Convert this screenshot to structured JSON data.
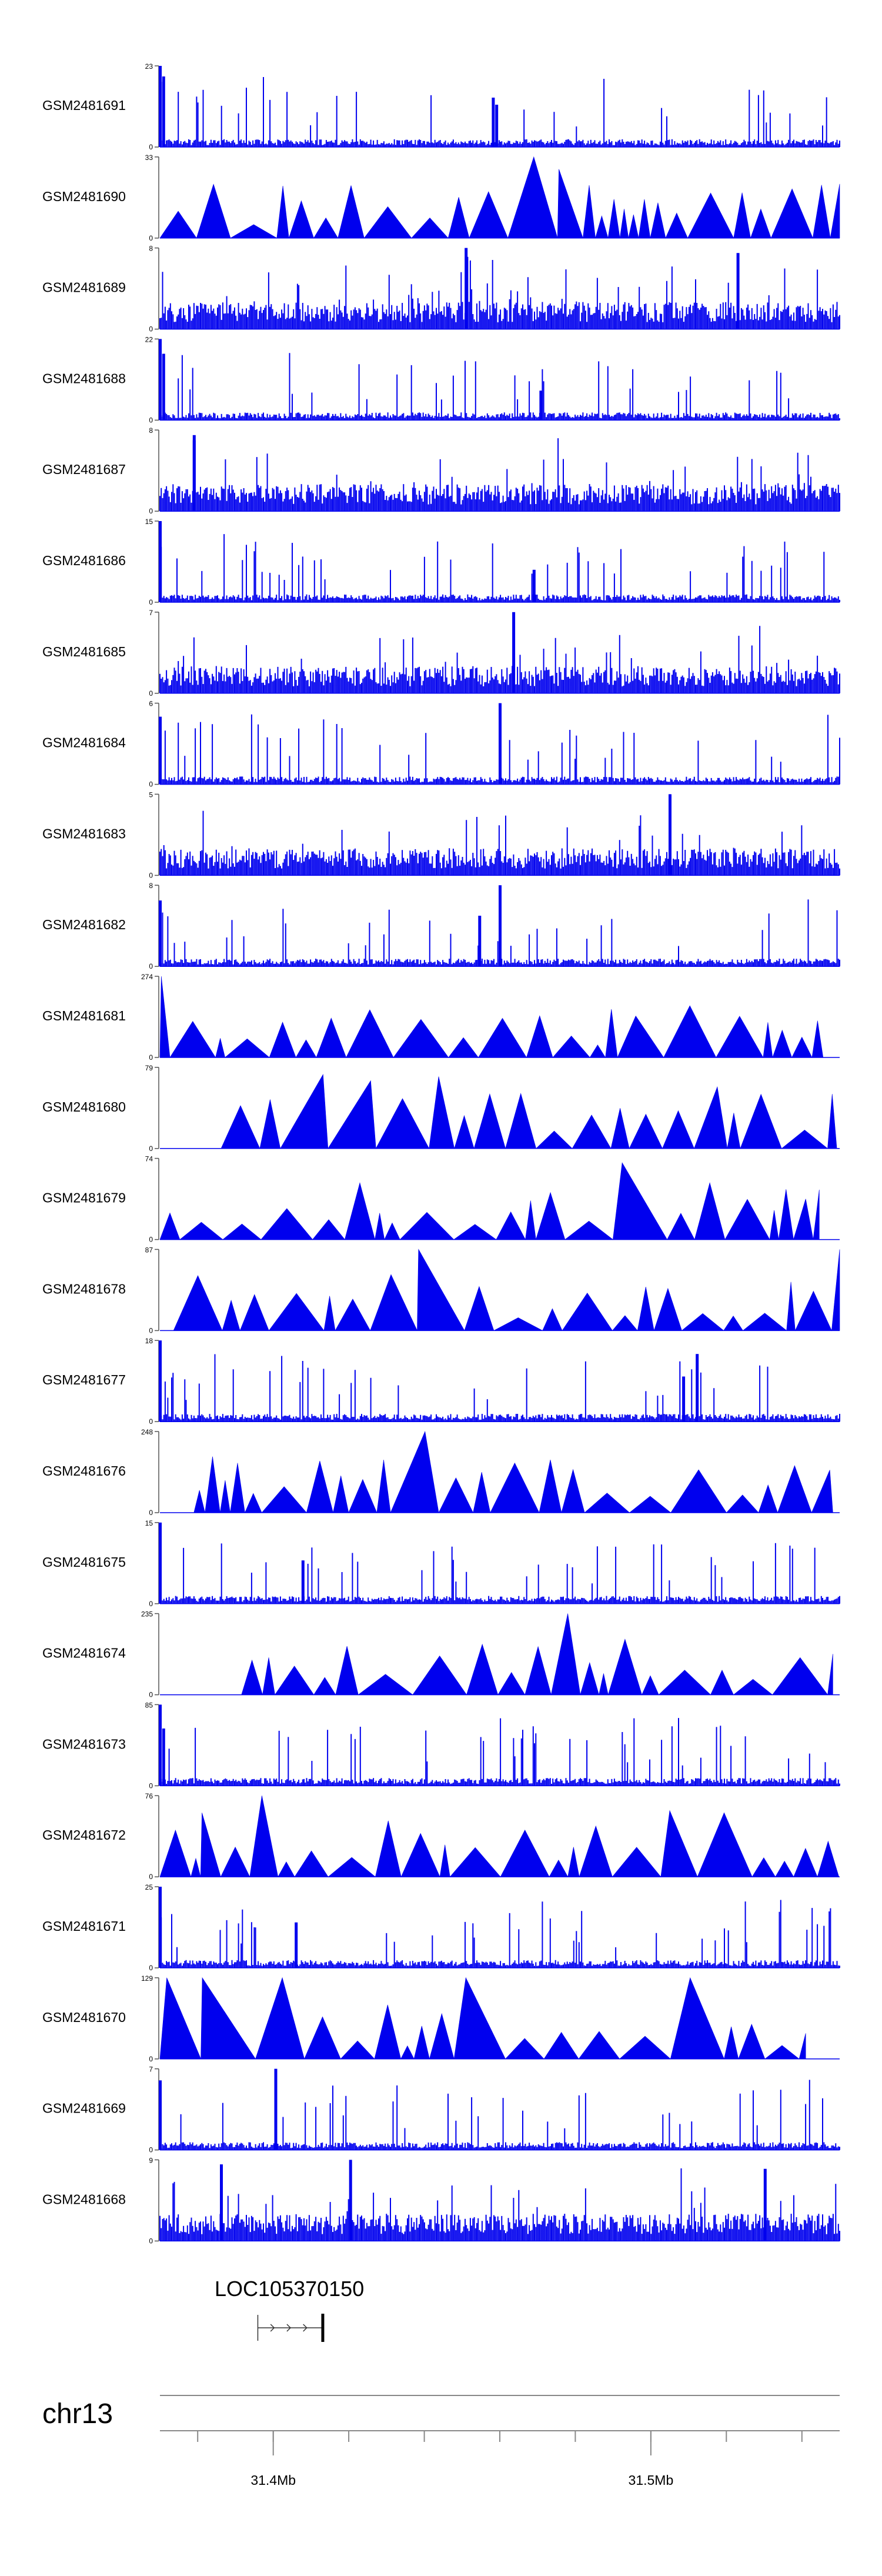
{
  "chart_data": {
    "type": "area",
    "title": "",
    "ylabel": "",
    "xlabel": "",
    "colors": {
      "signal": "#0000ee",
      "axis": "#555555",
      "text": "#000000",
      "gene": "#333333"
    },
    "tracks": [
      {
        "name": "GSM2481691",
        "ymax": 23,
        "style": "peaky",
        "seed": 11,
        "start": 0.0,
        "end": 1.0,
        "peaks": [
          [
            0.0,
            23
          ],
          [
            0.005,
            20
          ],
          [
            0.49,
            14
          ],
          [
            0.495,
            12
          ]
        ]
      },
      {
        "name": "GSM2481690",
        "ymax": 33,
        "style": "triangles",
        "seed": 12,
        "start": 0.0,
        "end": 1.0,
        "peaks": [
          [
            0.55,
            33
          ],
          [
            0.93,
            20
          ],
          [
            0.57,
            28
          ],
          [
            1.0,
            22
          ]
        ]
      },
      {
        "name": "GSM2481689",
        "ymax": 8,
        "style": "dense",
        "seed": 13,
        "start": 0.0,
        "end": 1.0,
        "peaks": [
          [
            0.45,
            8
          ],
          [
            0.85,
            7.5
          ]
        ]
      },
      {
        "name": "GSM2481688",
        "ymax": 22,
        "style": "peaky",
        "seed": 14,
        "start": 0.0,
        "end": 1.0,
        "peaks": [
          [
            0.0,
            22
          ],
          [
            0.005,
            18
          ],
          [
            0.56,
            8
          ]
        ]
      },
      {
        "name": "GSM2481687",
        "ymax": 8,
        "style": "dense",
        "seed": 15,
        "start": 0.0,
        "end": 1.0,
        "peaks": [
          [
            0.05,
            7
          ],
          [
            0.05,
            7.5
          ]
        ]
      },
      {
        "name": "GSM2481686",
        "ymax": 15,
        "style": "peaky",
        "seed": 16,
        "start": 0.0,
        "end": 1.0,
        "peaks": [
          [
            0.0,
            15
          ],
          [
            0.55,
            6
          ]
        ]
      },
      {
        "name": "GSM2481685",
        "ymax": 7,
        "style": "dense",
        "seed": 17,
        "start": 0.0,
        "end": 1.0,
        "peaks": [
          [
            0.52,
            7
          ]
        ]
      },
      {
        "name": "GSM2481684",
        "ymax": 6,
        "style": "peaky",
        "seed": 18,
        "start": 0.0,
        "end": 1.0,
        "peaks": [
          [
            0.5,
            6
          ],
          [
            0.0,
            5
          ]
        ]
      },
      {
        "name": "GSM2481683",
        "ymax": 5,
        "style": "dense",
        "seed": 19,
        "start": 0.0,
        "end": 1.0,
        "peaks": [
          [
            0.75,
            5
          ]
        ]
      },
      {
        "name": "GSM2481682",
        "ymax": 8,
        "style": "peaky",
        "seed": 20,
        "start": 0.0,
        "end": 1.0,
        "peaks": [
          [
            0.5,
            8
          ],
          [
            0.0,
            6.5
          ],
          [
            0.47,
            5
          ]
        ]
      },
      {
        "name": "GSM2481681",
        "ymax": 274,
        "style": "triangles",
        "seed": 21,
        "start": 0.0,
        "end": 0.98,
        "peaks": [
          [
            0.0,
            274
          ],
          [
            0.7,
            140
          ]
        ]
      },
      {
        "name": "GSM2481680",
        "ymax": 79,
        "style": "triangles",
        "seed": 22,
        "start": 0.09,
        "end": 1.0,
        "peaks": [
          [
            0.24,
            72
          ],
          [
            0.41,
            70
          ],
          [
            0.82,
            60
          ],
          [
            0.31,
            66
          ]
        ]
      },
      {
        "name": "GSM2481679",
        "ymax": 74,
        "style": "triangles",
        "seed": 23,
        "start": 0.0,
        "end": 0.97,
        "peaks": [
          [
            0.68,
            70
          ],
          [
            0.95,
            37
          ]
        ]
      },
      {
        "name": "GSM2481678",
        "ymax": 87,
        "style": "triangles",
        "seed": 24,
        "start": 0.02,
        "end": 1.0,
        "peaks": [
          [
            0.36,
            87
          ],
          [
            1.0,
            87
          ],
          [
            0.34,
            60
          ]
        ]
      },
      {
        "name": "GSM2481677",
        "ymax": 18,
        "style": "peaky",
        "seed": 25,
        "start": 0.0,
        "end": 1.0,
        "peaks": [
          [
            0.0,
            18
          ],
          [
            0.79,
            15
          ],
          [
            0.77,
            10
          ]
        ]
      },
      {
        "name": "GSM2481676",
        "ymax": 248,
        "style": "triangles",
        "seed": 26,
        "start": 0.05,
        "end": 0.99,
        "peaks": [
          [
            0.39,
            248
          ]
        ]
      },
      {
        "name": "GSM2481675",
        "ymax": 15,
        "style": "peaky",
        "seed": 27,
        "start": 0.0,
        "end": 1.0,
        "peaks": [
          [
            0.0,
            15
          ],
          [
            0.21,
            8
          ]
        ]
      },
      {
        "name": "GSM2481674",
        "ymax": 235,
        "style": "triangles",
        "seed": 28,
        "start": 0.12,
        "end": 0.99,
        "peaks": [
          [
            0.6,
            235
          ]
        ]
      },
      {
        "name": "GSM2481673",
        "ymax": 85,
        "style": "peaky",
        "seed": 29,
        "start": 0.0,
        "end": 1.0,
        "peaks": [
          [
            0.0,
            85
          ],
          [
            0.005,
            60
          ]
        ]
      },
      {
        "name": "GSM2481672",
        "ymax": 76,
        "style": "triangles",
        "seed": 30,
        "start": 0.0,
        "end": 1.0,
        "peaks": [
          [
            0.15,
            76
          ],
          [
            0.06,
            60
          ],
          [
            0.75,
            62
          ],
          [
            0.83,
            60
          ]
        ]
      },
      {
        "name": "GSM2481671",
        "ymax": 25,
        "style": "peaky",
        "seed": 31,
        "start": 0.0,
        "end": 1.0,
        "peaks": [
          [
            0.0,
            25
          ],
          [
            0.2,
            14
          ]
        ]
      },
      {
        "name": "GSM2481670",
        "ymax": 129,
        "style": "triangles",
        "seed": 32,
        "start": 0.0,
        "end": 0.95,
        "peaks": [
          [
            0.01,
            129
          ],
          [
            0.05,
            129
          ],
          [
            0.18,
            129
          ],
          [
            0.45,
            129
          ],
          [
            0.78,
            129
          ]
        ]
      },
      {
        "name": "GSM2481669",
        "ymax": 7,
        "style": "peaky",
        "seed": 33,
        "start": 0.0,
        "end": 1.0,
        "peaks": [
          [
            0.17,
            7
          ],
          [
            0.0,
            6
          ]
        ]
      },
      {
        "name": "GSM2481668",
        "ymax": 9,
        "style": "dense",
        "seed": 34,
        "start": 0.0,
        "end": 1.0,
        "peaks": [
          [
            0.28,
            9
          ],
          [
            0.09,
            8.5
          ],
          [
            0.89,
            8
          ]
        ]
      }
    ],
    "gene": {
      "label": "LOC105370150",
      "start_frac": 0.144,
      "end_frac": 0.24,
      "strand": "+"
    },
    "chromosome": {
      "label": "chr13",
      "xmin": 31.37,
      "xmax": 31.55,
      "tick_step": 0.02,
      "tick_labels": [
        {
          "value": 31.4,
          "label": "31.4Mb"
        },
        {
          "value": 31.5,
          "label": "31.5Mb"
        }
      ]
    }
  }
}
